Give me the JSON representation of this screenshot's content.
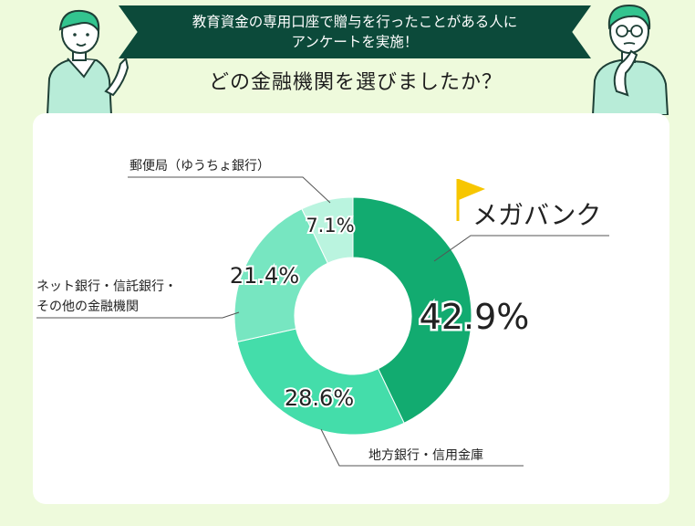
{
  "header": {
    "line1": "教育資金の専用口座で贈与を行ったことがある人に",
    "line2": "アンケートを実施！",
    "question": "どの金融機関を選びましたか？"
  },
  "chart_data": {
    "type": "pie",
    "donut": true,
    "title": "",
    "slices": [
      {
        "label": "メガバンク",
        "value": 42.9,
        "value_label": "42.9%",
        "color": "#12ab70"
      },
      {
        "label": "地方銀行・信用金庫",
        "value": 28.6,
        "value_label": "28.6%",
        "color": "#44ddaa"
      },
      {
        "label_lines": [
          "ネット銀行・信託銀行・",
          "その他の金融機関"
        ],
        "value": 21.4,
        "value_label": "21.4%",
        "color": "#77e6c1"
      },
      {
        "label": "郵便局（ゆうちょ銀行）",
        "value": 7.1,
        "value_label": "7.1%",
        "color": "#baf4df"
      }
    ],
    "highlight_icon": "flag-icon",
    "highlight_color": "#f7c600"
  }
}
